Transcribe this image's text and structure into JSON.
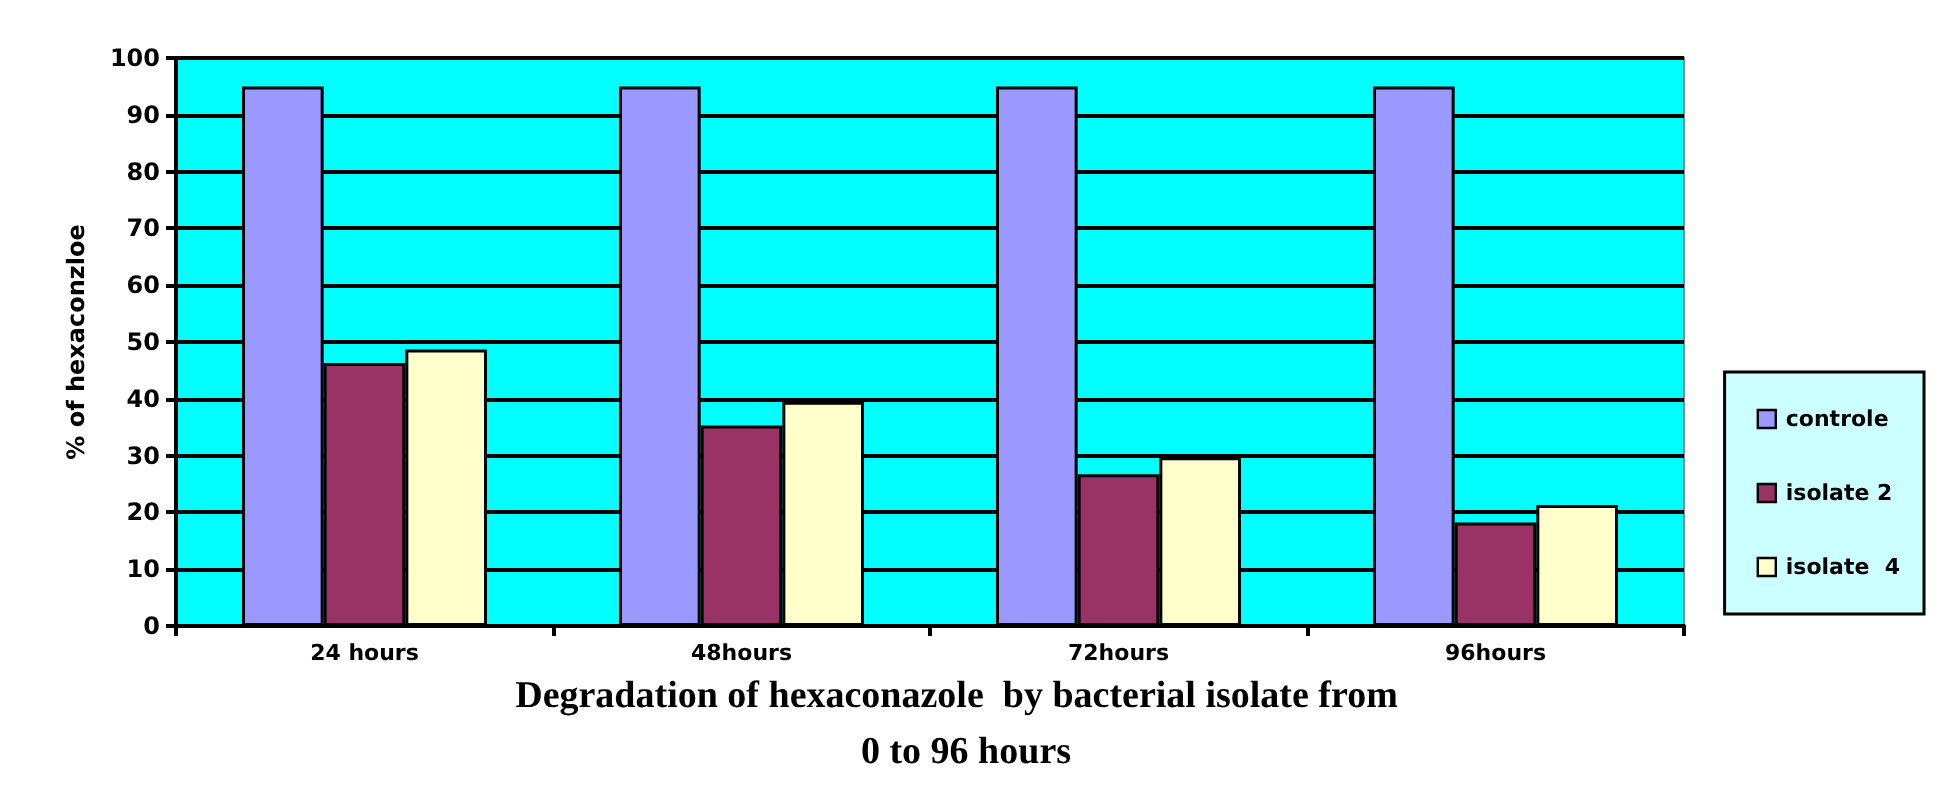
{
  "chart_data": {
    "type": "bar",
    "title": "Degradation of hexaconazole  by bacterial isolate from  0 to 96 hours",
    "ylabel": "% of hexaconzloe",
    "categories": [
      "24 hours",
      "48hours",
      "72hours",
      "96hours"
    ],
    "series": [
      {
        "name": "controle",
        "color": "#9999ff",
        "values": [
          95,
          95,
          95,
          95
        ]
      },
      {
        "name": "isolate 2",
        "color": "#993366",
        "values": [
          46.3,
          35.3,
          26.7,
          18.2
        ]
      },
      {
        "name": "isolate  4",
        "color": "#ffffcc",
        "values": [
          48.7,
          39.5,
          29.7,
          21.3
        ]
      }
    ],
    "ylim": [
      0,
      100
    ],
    "yticks": [
      0,
      10,
      20,
      30,
      40,
      50,
      60,
      70,
      80,
      90,
      100
    ],
    "grid": "y",
    "legend": "right"
  }
}
